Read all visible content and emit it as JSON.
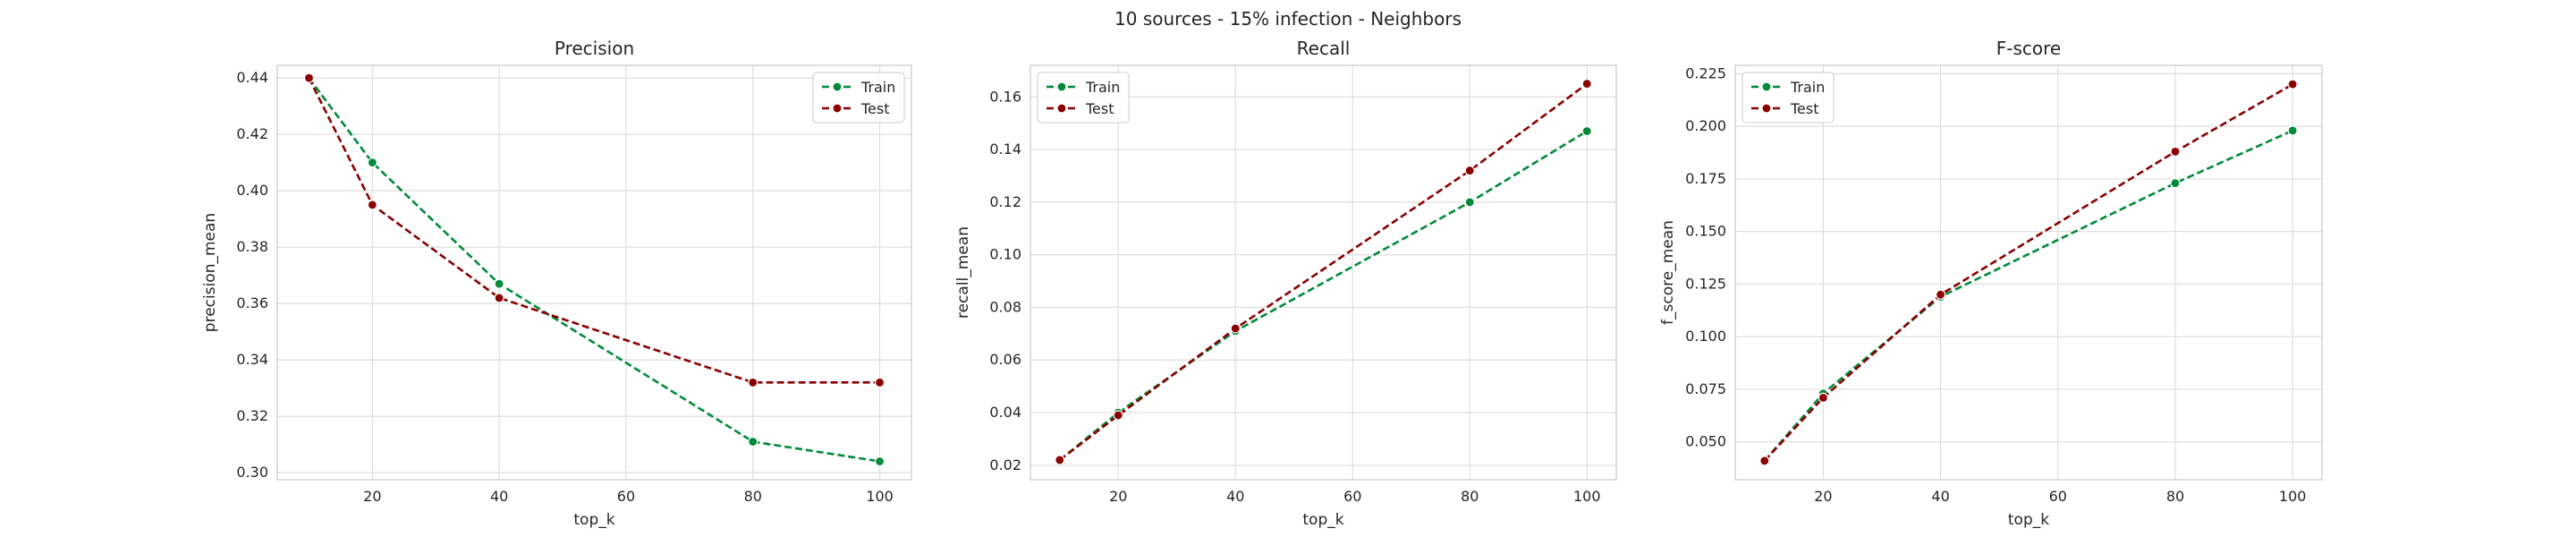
{
  "figure": {
    "suptitle": "10 sources - 15% infection - Neighbors"
  },
  "chart_data": [
    {
      "type": "line",
      "title": "Precision",
      "xlabel": "top_k",
      "ylabel": "precision_mean",
      "x": [
        10,
        20,
        40,
        80,
        100
      ],
      "xlim": [
        5,
        105
      ],
      "ylim": [
        0.2975,
        0.4445
      ],
      "xticks": [
        20,
        40,
        60,
        80,
        100
      ],
      "xtick_labels": [
        "20",
        "40",
        "60",
        "80",
        "100"
      ],
      "yticks": [
        0.3,
        0.32,
        0.34,
        0.36,
        0.38,
        0.4,
        0.42,
        0.44
      ],
      "ytick_labels": [
        "0.30",
        "0.32",
        "0.34",
        "0.36",
        "0.38",
        "0.40",
        "0.42",
        "0.44"
      ],
      "grid": true,
      "legend": "top-right",
      "series": [
        {
          "name": "Train",
          "color": "#008a3a",
          "values": [
            0.44,
            0.41,
            0.367,
            0.311,
            0.304
          ]
        },
        {
          "name": "Test",
          "color": "#8b0000",
          "values": [
            0.44,
            0.395,
            0.362,
            0.332,
            0.332
          ]
        }
      ]
    },
    {
      "type": "line",
      "title": "Recall",
      "xlabel": "top_k",
      "ylabel": "recall_mean",
      "x": [
        10,
        20,
        40,
        80,
        100
      ],
      "xlim": [
        5,
        105
      ],
      "ylim": [
        0.0145,
        0.172
      ],
      "xticks": [
        20,
        40,
        60,
        80,
        100
      ],
      "xtick_labels": [
        "20",
        "40",
        "60",
        "80",
        "100"
      ],
      "yticks": [
        0.02,
        0.04,
        0.06,
        0.08,
        0.1,
        0.12,
        0.14,
        0.16
      ],
      "ytick_labels": [
        "0.02",
        "0.04",
        "0.06",
        "0.08",
        "0.10",
        "0.12",
        "0.14",
        "0.16"
      ],
      "grid": true,
      "legend": "top-left",
      "series": [
        {
          "name": "Train",
          "color": "#008a3a",
          "values": [
            0.022,
            0.04,
            0.071,
            0.12,
            0.147
          ]
        },
        {
          "name": "Test",
          "color": "#8b0000",
          "values": [
            0.022,
            0.039,
            0.072,
            0.132,
            0.165
          ]
        }
      ]
    },
    {
      "type": "line",
      "title": "F-score",
      "xlabel": "top_k",
      "ylabel": "f_score_mean",
      "x": [
        10,
        20,
        40,
        80,
        100
      ],
      "xlim": [
        5,
        105
      ],
      "ylim": [
        0.032,
        0.229
      ],
      "xticks": [
        20,
        40,
        60,
        80,
        100
      ],
      "xtick_labels": [
        "20",
        "40",
        "60",
        "80",
        "100"
      ],
      "yticks": [
        0.05,
        0.075,
        0.1,
        0.125,
        0.15,
        0.175,
        0.2,
        0.225
      ],
      "ytick_labels": [
        "0.050",
        "0.075",
        "0.100",
        "0.125",
        "0.150",
        "0.175",
        "0.200",
        "0.225"
      ],
      "grid": true,
      "legend": "top-left",
      "series": [
        {
          "name": "Train",
          "color": "#008a3a",
          "values": [
            0.041,
            0.073,
            0.119,
            0.173,
            0.198
          ]
        },
        {
          "name": "Test",
          "color": "#8b0000",
          "values": [
            0.041,
            0.071,
            0.12,
            0.188,
            0.22
          ]
        }
      ]
    }
  ]
}
